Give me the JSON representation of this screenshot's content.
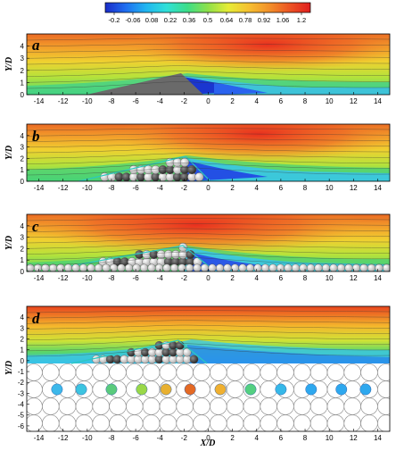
{
  "chart_data": {
    "type": "heatmap",
    "colorbar": {
      "ticks": [
        "-0.2",
        "-0.06",
        "0.08",
        "0.22",
        "0.36",
        "0.5",
        "0.64",
        "0.78",
        "0.92",
        "1.06",
        "1.2"
      ],
      "range": [
        -0.2,
        1.2
      ],
      "colors": [
        "#1a2cc8",
        "#1f6ef0",
        "#20b6f0",
        "#30e0d8",
        "#3cde88",
        "#8ee04a",
        "#e6ec36",
        "#f6c030",
        "#f2902a",
        "#ec5424",
        "#e01e1e"
      ],
      "position": "top"
    },
    "xlabel": "X/D",
    "ylabel": "Y/D",
    "xlim": [
      -15,
      15
    ],
    "x_ticks": [
      -14,
      -12,
      -10,
      -8,
      -6,
      -4,
      -2,
      0,
      2,
      4,
      6,
      8,
      10,
      12,
      14
    ],
    "panels": [
      {
        "label": "a",
        "ylim": [
          0,
          5
        ],
        "y_ticks": [
          0,
          1,
          2,
          3,
          4
        ],
        "bed": "rigid-dune"
      },
      {
        "label": "b",
        "ylim": [
          0,
          5
        ],
        "y_ticks": [
          0,
          1,
          2,
          3,
          4
        ],
        "bed": "dune-of-spheres"
      },
      {
        "label": "c",
        "ylim": [
          0,
          5
        ],
        "y_ticks": [
          0,
          1,
          2,
          3,
          4
        ],
        "bed": "dune-of-spheres-on-sphere-layer"
      },
      {
        "label": "d",
        "ylim": [
          -6.5,
          5
        ],
        "y_ticks": [
          -6,
          -5,
          -4,
          -3,
          -2,
          -1,
          0,
          1,
          2,
          3,
          4
        ],
        "bed": "dune-over-permeable-sphere-bed",
        "subsurface_probe_x": [
          -12.5,
          -10.5,
          -8,
          -5.5,
          -3.5,
          -1.5,
          1,
          3.5,
          6,
          8.5,
          11,
          13
        ]
      }
    ]
  }
}
